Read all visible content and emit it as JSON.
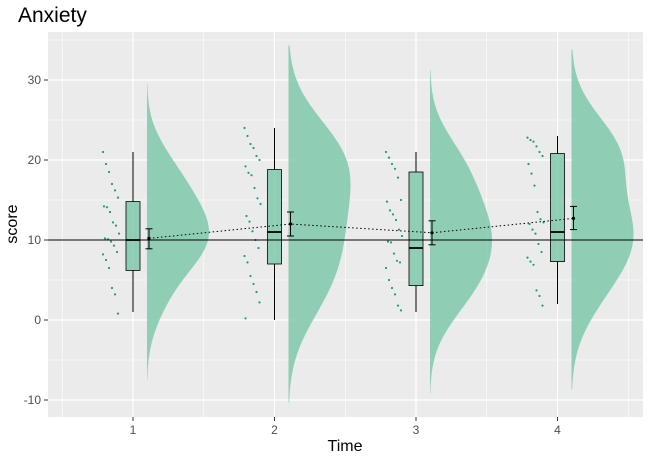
{
  "chart_data": {
    "type": "raincloud",
    "title": "Anxiety",
    "xlabel": "Time",
    "ylabel": "score",
    "categories": [
      "1",
      "2",
      "3",
      "4"
    ],
    "ylim": [
      -12,
      36
    ],
    "yticks": [
      -10,
      0,
      10,
      20,
      30
    ],
    "reference_line": 10,
    "grid": true,
    "colors": {
      "panel": "#ebebeb",
      "grid": "#ffffff",
      "fill": "#7fc9ac",
      "fill_edge": "#66c2a5",
      "points": "#1b9e77",
      "line": "#000000"
    },
    "groups": [
      {
        "time": "1",
        "boxplot": {
          "min": 1,
          "q1": 6.2,
          "median": 10,
          "q3": 14.8,
          "max": 21
        },
        "mean": 10.2,
        "mean_ci": [
          8.9,
          11.4
        ],
        "density": {
          "range": [
            -7.5,
            29.5
          ],
          "mode": 10.5
        },
        "points": [
          21,
          19.5,
          18.5,
          17,
          16.2,
          15.3,
          14.2,
          14.1,
          13.5,
          12.2,
          11.8,
          10.8,
          10.2,
          10.1,
          9.8,
          9.3,
          8.5,
          8.2,
          7.5,
          6.5,
          4,
          3.2,
          0.8
        ]
      },
      {
        "time": "2",
        "boxplot": {
          "min": 0,
          "q1": 7,
          "median": 11,
          "q3": 18.8,
          "max": 24
        },
        "mean": 12,
        "mean_ci": [
          10.5,
          13.5
        ],
        "density": {
          "range": [
            -10.3,
            34.3
          ],
          "mode": 10.5
        },
        "points": [
          24,
          23,
          22,
          21.5,
          20.5,
          20,
          19.2,
          18.4,
          18.1,
          16.5,
          15.2,
          14.5,
          13,
          12.3,
          11.1,
          10,
          9,
          8,
          7.2,
          5.5,
          4.5,
          3.5,
          2.2,
          0.2
        ]
      },
      {
        "time": "3",
        "boxplot": {
          "min": 1,
          "q1": 4.3,
          "median": 9,
          "q3": 18.5,
          "max": 21
        },
        "mean": 10.9,
        "mean_ci": [
          9.4,
          12.4
        ],
        "density": {
          "range": [
            -9.2,
            31.3
          ],
          "mode": 8.0
        },
        "points": [
          21,
          20.3,
          19.5,
          18.9,
          17.8,
          15,
          14.8,
          13.7,
          13.2,
          12.5,
          11.3,
          10.5,
          9.8,
          9.7,
          8.3,
          7.4,
          7.2,
          6.5,
          5,
          4,
          3.2,
          1.8,
          1.2
        ]
      },
      {
        "time": "4",
        "boxplot": {
          "min": 2,
          "q1": 7.3,
          "median": 11,
          "q3": 20.8,
          "max": 23
        },
        "mean": 12.7,
        "mean_ci": [
          11.3,
          14.2
        ],
        "density": {
          "range": [
            -8.7,
            33.8
          ],
          "mode": 10.5
        },
        "points": [
          22.8,
          22.5,
          22.3,
          21.7,
          21,
          20.5,
          19.5,
          18.3,
          16.8,
          13.5,
          12.6,
          12.2,
          12,
          11.3,
          10.8,
          9.5,
          8.5,
          7.8,
          7.3,
          6.9,
          3.7,
          3,
          1.8
        ]
      }
    ]
  }
}
